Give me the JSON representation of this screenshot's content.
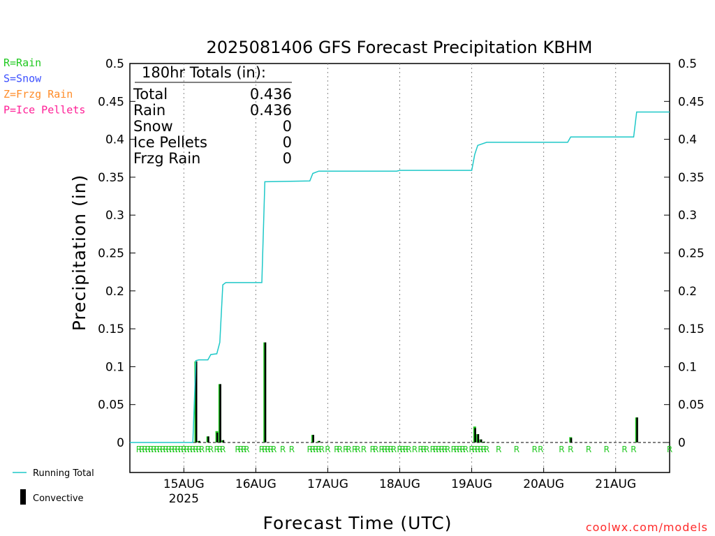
{
  "title": "2025081406 GFS Forecast Precipitation KBHM",
  "credit": "coolwx.com/models",
  "colors": {
    "rain": "#1ec81e",
    "snow": "#3c50ff",
    "frzg_rain": "#ff8c28",
    "ice_pellets": "#ff1e96",
    "running_total": "#1ec8c8",
    "convective": "#000000",
    "ptype_marker": "#1ec81e"
  },
  "ptype_legend": [
    {
      "label": "R=Rain",
      "color": "#1ec81e"
    },
    {
      "label": "S=Snow",
      "color": "#3c50ff"
    },
    {
      "label": "Z=Frzg Rain",
      "color": "#ff8c28"
    },
    {
      "label": "P=Ice Pellets",
      "color": "#ff1e96"
    }
  ],
  "series_legend": {
    "running_total": "Running Total",
    "convective": "Convective"
  },
  "totals": {
    "header": "180hr Totals (in):",
    "rows": [
      {
        "label": "Total",
        "value": "0.436"
      },
      {
        "label": "Rain",
        "value": "0.436"
      },
      {
        "label": "Snow",
        "value": "0"
      },
      {
        "label": "Ice Pellets",
        "value": "0"
      },
      {
        "label": "Frzg Rain",
        "value": "0"
      }
    ]
  },
  "chart_data": {
    "type": "line",
    "xlabel": "Forecast Time (UTC)",
    "ylabel": "Precipitation (in)",
    "xlim": [
      "2025-08-14T06",
      "2025-08-21T18"
    ],
    "ylim": [
      -0.04,
      0.5
    ],
    "yticks": [
      0,
      0.05,
      0.1,
      0.15,
      0.2,
      0.25,
      0.3,
      0.35,
      0.4,
      0.45,
      0.5
    ],
    "ytick_labels": [
      "0",
      "0.05",
      "0.1",
      "0.15",
      "0.2",
      "0.25",
      "0.3",
      "0.35",
      "0.4",
      "0.45",
      "0.5"
    ],
    "xticks": [
      {
        "x": "2025-08-15T00",
        "label": "15AUG",
        "sublabel": "2025"
      },
      {
        "x": "2025-08-16T00",
        "label": "16AUG",
        "sublabel": ""
      },
      {
        "x": "2025-08-17T00",
        "label": "17AUG",
        "sublabel": ""
      },
      {
        "x": "2025-08-18T00",
        "label": "18AUG",
        "sublabel": ""
      },
      {
        "x": "2025-08-19T00",
        "label": "19AUG",
        "sublabel": ""
      },
      {
        "x": "2025-08-20T00",
        "label": "20AUG",
        "sublabel": ""
      },
      {
        "x": "2025-08-21T00",
        "label": "21AUG",
        "sublabel": ""
      }
    ],
    "grid": "vertical dotted at day boundaries",
    "series": [
      {
        "name": "Running Total",
        "kind": "line",
        "points": [
          [
            "2025-08-14T06",
            0
          ],
          [
            "2025-08-15T03",
            0
          ],
          [
            "2025-08-15T04",
            0.108
          ],
          [
            "2025-08-15T05",
            0.109
          ],
          [
            "2025-08-15T08",
            0.109
          ],
          [
            "2025-08-15T09",
            0.116
          ],
          [
            "2025-08-15T11",
            0.117
          ],
          [
            "2025-08-15T12",
            0.132
          ],
          [
            "2025-08-15T13",
            0.208
          ],
          [
            "2025-08-15T14",
            0.211
          ],
          [
            "2025-08-16T02",
            0.211
          ],
          [
            "2025-08-16T03",
            0.344
          ],
          [
            "2025-08-16T18",
            0.345
          ],
          [
            "2025-08-16T19",
            0.355
          ],
          [
            "2025-08-16T21",
            0.358
          ],
          [
            "2025-08-17T23",
            0.358
          ],
          [
            "2025-08-18T00",
            0.359
          ],
          [
            "2025-08-19T00",
            0.359
          ],
          [
            "2025-08-19T01",
            0.38
          ],
          [
            "2025-08-19T02",
            0.392
          ],
          [
            "2025-08-19T05",
            0.396
          ],
          [
            "2025-08-20T08",
            0.396
          ],
          [
            "2025-08-20T09",
            0.403
          ],
          [
            "2025-08-21T06",
            0.403
          ],
          [
            "2025-08-21T07",
            0.436
          ],
          [
            "2025-08-21T18",
            0.436
          ]
        ]
      },
      {
        "name": "Rain",
        "kind": "bar",
        "points": [
          [
            "2025-08-15T04",
            0.107
          ],
          [
            "2025-08-15T05",
            0.002
          ],
          [
            "2025-08-15T08",
            0.008
          ],
          [
            "2025-08-15T11",
            0.015
          ],
          [
            "2025-08-15T12",
            0.077
          ],
          [
            "2025-08-15T13",
            0.003
          ],
          [
            "2025-08-16T03",
            0.132
          ],
          [
            "2025-08-16T19",
            0.01
          ],
          [
            "2025-08-16T21",
            0.002
          ],
          [
            "2025-08-19T01",
            0.021
          ],
          [
            "2025-08-19T02",
            0.011
          ],
          [
            "2025-08-19T03",
            0.004
          ],
          [
            "2025-08-19T04",
            0.001
          ],
          [
            "2025-08-20T09",
            0.007
          ],
          [
            "2025-08-21T07",
            0.033
          ]
        ]
      },
      {
        "name": "Convective",
        "kind": "bar",
        "points": [
          [
            "2025-08-15T04",
            0.107
          ],
          [
            "2025-08-15T05",
            0.002
          ],
          [
            "2025-08-15T08",
            0.008
          ],
          [
            "2025-08-15T11",
            0.013
          ],
          [
            "2025-08-15T12",
            0.077
          ],
          [
            "2025-08-15T13",
            0.003
          ],
          [
            "2025-08-16T03",
            0.132
          ],
          [
            "2025-08-16T19",
            0.01
          ],
          [
            "2025-08-16T21",
            0.002
          ],
          [
            "2025-08-19T01",
            0.019
          ],
          [
            "2025-08-19T02",
            0.011
          ],
          [
            "2025-08-19T03",
            0.004
          ],
          [
            "2025-08-19T04",
            0.001
          ],
          [
            "2025-08-20T09",
            0.006
          ],
          [
            "2025-08-21T07",
            0.033
          ]
        ]
      }
    ],
    "ptype_markers": {
      "symbol": "R",
      "times": [
        "2025-08-14T09",
        "2025-08-14T10",
        "2025-08-14T11",
        "2025-08-14T12",
        "2025-08-14T13",
        "2025-08-14T14",
        "2025-08-14T15",
        "2025-08-14T16",
        "2025-08-14T17",
        "2025-08-14T18",
        "2025-08-14T19",
        "2025-08-14T20",
        "2025-08-14T21",
        "2025-08-14T22",
        "2025-08-14T23",
        "2025-08-15T00",
        "2025-08-15T01",
        "2025-08-15T02",
        "2025-08-15T03",
        "2025-08-15T04",
        "2025-08-15T05",
        "2025-08-15T06",
        "2025-08-15T08",
        "2025-08-15T09",
        "2025-08-15T11",
        "2025-08-15T12",
        "2025-08-15T13",
        "2025-08-15T18",
        "2025-08-15T19",
        "2025-08-15T20",
        "2025-08-15T21",
        "2025-08-16T02",
        "2025-08-16T03",
        "2025-08-16T04",
        "2025-08-16T05",
        "2025-08-16T06",
        "2025-08-16T09",
        "2025-08-16T12",
        "2025-08-16T18",
        "2025-08-16T19",
        "2025-08-16T20",
        "2025-08-16T21",
        "2025-08-16T22",
        "2025-08-17T00",
        "2025-08-17T03",
        "2025-08-17T04",
        "2025-08-17T06",
        "2025-08-17T07",
        "2025-08-17T09",
        "2025-08-17T10",
        "2025-08-17T12",
        "2025-08-17T15",
        "2025-08-17T16",
        "2025-08-17T18",
        "2025-08-17T19",
        "2025-08-17T20",
        "2025-08-17T21",
        "2025-08-17T22",
        "2025-08-18T00",
        "2025-08-18T01",
        "2025-08-18T02",
        "2025-08-18T03",
        "2025-08-18T05",
        "2025-08-18T07",
        "2025-08-18T08",
        "2025-08-18T09",
        "2025-08-18T11",
        "2025-08-18T12",
        "2025-08-18T13",
        "2025-08-18T14",
        "2025-08-18T15",
        "2025-08-18T16",
        "2025-08-18T18",
        "2025-08-18T19",
        "2025-08-18T20",
        "2025-08-18T21",
        "2025-08-18T22",
        "2025-08-19T00",
        "2025-08-19T01",
        "2025-08-19T02",
        "2025-08-19T03",
        "2025-08-19T04",
        "2025-08-19T05",
        "2025-08-19T09",
        "2025-08-19T15",
        "2025-08-19T21",
        "2025-08-19T23",
        "2025-08-20T06",
        "2025-08-20T09",
        "2025-08-20T15",
        "2025-08-20T21",
        "2025-08-21T03",
        "2025-08-21T06",
        "2025-08-21T18"
      ]
    }
  }
}
